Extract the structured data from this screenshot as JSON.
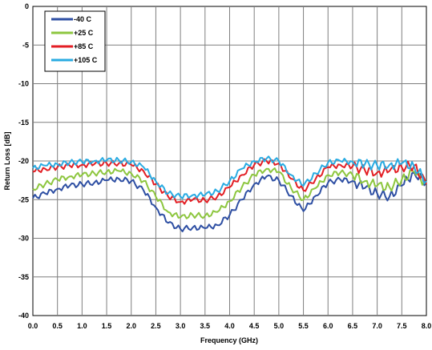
{
  "chart_data": {
    "type": "line",
    "title": "",
    "xlabel": "Frequency (GHz)",
    "ylabel": "Return Loss  [dB]",
    "xlim": [
      0.0,
      8.0
    ],
    "ylim": [
      -40,
      0
    ],
    "x_ticks": [
      "0.0",
      "0.5",
      "1.0",
      "1.5",
      "2.0",
      "2.5",
      "3.0",
      "3.5",
      "4.0",
      "4.5",
      "5.0",
      "5.5",
      "6.0",
      "6.5",
      "7.0",
      "7.5",
      "8.0"
    ],
    "y_ticks": [
      "0",
      "-5",
      "-10",
      "-15",
      "-20",
      "-25",
      "-30",
      "-35",
      "-40"
    ],
    "grid": true,
    "legend_position": "top-left",
    "x": [
      0.0,
      0.25,
      0.5,
      0.75,
      1.0,
      1.25,
      1.5,
      1.75,
      2.0,
      2.25,
      2.5,
      2.75,
      3.0,
      3.25,
      3.5,
      3.75,
      4.0,
      4.25,
      4.5,
      4.75,
      5.0,
      5.25,
      5.5,
      5.75,
      6.0,
      6.25,
      6.5,
      6.75,
      7.0,
      7.25,
      7.5,
      7.75,
      8.0
    ],
    "series": [
      {
        "name": "-40 C",
        "color": "#2e4fa3",
        "values": [
          -24.8,
          -24.2,
          -23.6,
          -23.2,
          -23.0,
          -22.8,
          -22.5,
          -22.3,
          -22.6,
          -23.8,
          -26.0,
          -28.0,
          -28.8,
          -28.6,
          -28.7,
          -28.3,
          -27.0,
          -25.0,
          -23.0,
          -22.0,
          -22.5,
          -24.5,
          -26.5,
          -24.5,
          -22.8,
          -22.4,
          -22.6,
          -23.5,
          -24.2,
          -24.6,
          -23.2,
          -21.5,
          -22.8
        ]
      },
      {
        "name": "+25 C",
        "color": "#8dc63f",
        "values": [
          -23.6,
          -23.0,
          -22.4,
          -22.0,
          -21.8,
          -21.6,
          -21.4,
          -21.3,
          -21.6,
          -22.6,
          -24.6,
          -26.6,
          -27.3,
          -27.0,
          -27.1,
          -26.6,
          -25.2,
          -23.4,
          -21.8,
          -21.0,
          -21.4,
          -23.5,
          -25.0,
          -23.5,
          -21.8,
          -21.5,
          -21.8,
          -22.6,
          -23.2,
          -23.4,
          -22.4,
          -21.4,
          -23.0
        ]
      },
      {
        "name": "+85 C",
        "color": "#e31e24",
        "values": [
          -21.4,
          -21.0,
          -20.8,
          -20.6,
          -20.5,
          -20.4,
          -20.3,
          -20.3,
          -20.5,
          -21.3,
          -23.0,
          -24.6,
          -25.3,
          -25.0,
          -25.1,
          -24.6,
          -23.4,
          -21.8,
          -20.5,
          -20.0,
          -20.3,
          -22.3,
          -23.8,
          -22.3,
          -20.8,
          -20.5,
          -20.7,
          -21.2,
          -21.5,
          -21.3,
          -20.8,
          -20.6,
          -23.0
        ]
      },
      {
        "name": "+105 C",
        "color": "#29abe2",
        "values": [
          -20.9,
          -20.6,
          -20.4,
          -20.2,
          -20.1,
          -20.0,
          -19.9,
          -19.9,
          -20.1,
          -20.8,
          -22.6,
          -24.2,
          -24.6,
          -24.4,
          -24.4,
          -23.9,
          -22.6,
          -21.0,
          -20.0,
          -19.7,
          -20.0,
          -21.8,
          -23.2,
          -21.6,
          -20.2,
          -20.0,
          -20.1,
          -20.4,
          -20.6,
          -20.5,
          -20.3,
          -20.7,
          -22.6
        ]
      }
    ]
  }
}
